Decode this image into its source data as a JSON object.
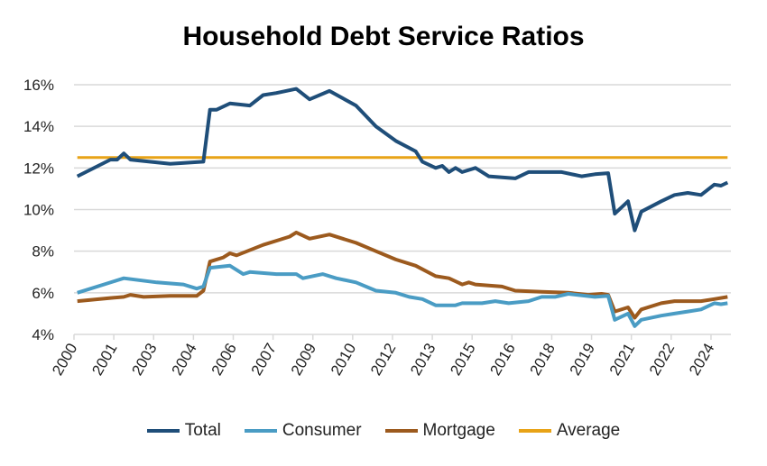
{
  "chart_data": {
    "type": "line",
    "title": "Household Debt Service Ratios",
    "xlabel": "",
    "ylabel": "",
    "ylim": [
      4,
      16
    ],
    "y_ticks": [
      "4%",
      "6%",
      "8%",
      "10%",
      "12%",
      "14%",
      "16%"
    ],
    "x_range": [
      2000.0,
      2024.5
    ],
    "x_tick_labels": [
      "2000",
      "2001",
      "2003",
      "2004",
      "2006",
      "2007",
      "2009",
      "2010",
      "2012",
      "2013",
      "2015",
      "2016",
      "2018",
      "2019",
      "2021",
      "2022",
      "2024"
    ],
    "grid": true,
    "legend": "bottom",
    "series": [
      {
        "name": "Total",
        "color": "#1f4e79",
        "points": [
          [
            2000,
            11.6
          ],
          [
            2001.25,
            12.4
          ],
          [
            2001.5,
            12.4
          ],
          [
            2001.75,
            12.7
          ],
          [
            2002,
            12.4
          ],
          [
            2003.5,
            12.2
          ],
          [
            2004.75,
            12.3
          ],
          [
            2005,
            14.8
          ],
          [
            2005.25,
            14.8
          ],
          [
            2005.75,
            15.1
          ],
          [
            2006.5,
            15.0
          ],
          [
            2007,
            15.5
          ],
          [
            2007.5,
            15.6
          ],
          [
            2008.25,
            15.8
          ],
          [
            2008.75,
            15.3
          ],
          [
            2009.5,
            15.7
          ],
          [
            2010.5,
            15.0
          ],
          [
            2011.25,
            14.0
          ],
          [
            2012,
            13.3
          ],
          [
            2012.75,
            12.8
          ],
          [
            2013,
            12.3
          ],
          [
            2013.5,
            12.0
          ],
          [
            2013.75,
            12.1
          ],
          [
            2014,
            11.8
          ],
          [
            2014.25,
            12.0
          ],
          [
            2014.5,
            11.8
          ],
          [
            2015,
            12.0
          ],
          [
            2015.5,
            11.6
          ],
          [
            2016.5,
            11.5
          ],
          [
            2017,
            11.8
          ],
          [
            2018.25,
            11.8
          ],
          [
            2019,
            11.6
          ],
          [
            2019.5,
            11.7
          ],
          [
            2020,
            11.75
          ],
          [
            2020.25,
            9.8
          ],
          [
            2020.75,
            10.4
          ],
          [
            2021,
            9.0
          ],
          [
            2021.25,
            9.9
          ],
          [
            2022,
            10.4
          ],
          [
            2022.5,
            10.7
          ],
          [
            2023,
            10.8
          ],
          [
            2023.5,
            10.7
          ],
          [
            2024,
            11.2
          ],
          [
            2024.25,
            11.15
          ],
          [
            2024.5,
            11.3
          ]
        ]
      },
      {
        "name": "Consumer",
        "color": "#4a9cc4",
        "points": [
          [
            2000,
            6.0
          ],
          [
            2001,
            6.4
          ],
          [
            2001.5,
            6.6
          ],
          [
            2001.75,
            6.7
          ],
          [
            2003,
            6.5
          ],
          [
            2004,
            6.4
          ],
          [
            2004.5,
            6.2
          ],
          [
            2004.75,
            6.3
          ],
          [
            2005,
            7.2
          ],
          [
            2005.75,
            7.3
          ],
          [
            2006.25,
            6.9
          ],
          [
            2006.5,
            7.0
          ],
          [
            2007.5,
            6.9
          ],
          [
            2008.25,
            6.9
          ],
          [
            2008.5,
            6.7
          ],
          [
            2009.25,
            6.9
          ],
          [
            2009.75,
            6.7
          ],
          [
            2010.5,
            6.5
          ],
          [
            2011.25,
            6.1
          ],
          [
            2012,
            6.0
          ],
          [
            2012.5,
            5.8
          ],
          [
            2013,
            5.7
          ],
          [
            2013.5,
            5.4
          ],
          [
            2014,
            5.4
          ],
          [
            2014.25,
            5.4
          ],
          [
            2014.5,
            5.5
          ],
          [
            2015.25,
            5.5
          ],
          [
            2015.75,
            5.6
          ],
          [
            2016.25,
            5.5
          ],
          [
            2017,
            5.6
          ],
          [
            2017.5,
            5.8
          ],
          [
            2018,
            5.8
          ],
          [
            2018.5,
            5.95
          ],
          [
            2019.5,
            5.8
          ],
          [
            2020,
            5.85
          ],
          [
            2020.25,
            4.7
          ],
          [
            2020.75,
            5.0
          ],
          [
            2021,
            4.4
          ],
          [
            2021.25,
            4.7
          ],
          [
            2022,
            4.9
          ],
          [
            2022.5,
            5.0
          ],
          [
            2023,
            5.1
          ],
          [
            2023.5,
            5.2
          ],
          [
            2024,
            5.5
          ],
          [
            2024.25,
            5.45
          ],
          [
            2024.5,
            5.5
          ]
        ]
      },
      {
        "name": "Mortgage",
        "color": "#9c5a1e",
        "points": [
          [
            2000,
            5.6
          ],
          [
            2001.25,
            5.75
          ],
          [
            2001.75,
            5.8
          ],
          [
            2002,
            5.9
          ],
          [
            2002.5,
            5.8
          ],
          [
            2003.5,
            5.85
          ],
          [
            2004.5,
            5.85
          ],
          [
            2004.75,
            6.1
          ],
          [
            2005,
            7.5
          ],
          [
            2005.5,
            7.7
          ],
          [
            2005.75,
            7.9
          ],
          [
            2006,
            7.8
          ],
          [
            2007,
            8.3
          ],
          [
            2007.5,
            8.5
          ],
          [
            2008,
            8.7
          ],
          [
            2008.25,
            8.9
          ],
          [
            2008.75,
            8.6
          ],
          [
            2009.5,
            8.8
          ],
          [
            2010.5,
            8.4
          ],
          [
            2011.25,
            8.0
          ],
          [
            2012,
            7.6
          ],
          [
            2012.75,
            7.3
          ],
          [
            2013.5,
            6.8
          ],
          [
            2014,
            6.7
          ],
          [
            2014.5,
            6.4
          ],
          [
            2014.75,
            6.5
          ],
          [
            2015,
            6.4
          ],
          [
            2016,
            6.3
          ],
          [
            2016.5,
            6.1
          ],
          [
            2017.5,
            6.05
          ],
          [
            2018.5,
            6.0
          ],
          [
            2019.25,
            5.9
          ],
          [
            2019.75,
            5.95
          ],
          [
            2020,
            5.9
          ],
          [
            2020.25,
            5.1
          ],
          [
            2020.75,
            5.3
          ],
          [
            2021,
            4.8
          ],
          [
            2021.25,
            5.2
          ],
          [
            2022,
            5.5
          ],
          [
            2022.5,
            5.6
          ],
          [
            2023,
            5.6
          ],
          [
            2023.5,
            5.6
          ],
          [
            2024,
            5.7
          ],
          [
            2024.5,
            5.8
          ]
        ]
      },
      {
        "name": "Average",
        "color": "#e8a317",
        "points": [
          [
            2000,
            12.5
          ],
          [
            2024.5,
            12.5
          ]
        ]
      }
    ]
  }
}
